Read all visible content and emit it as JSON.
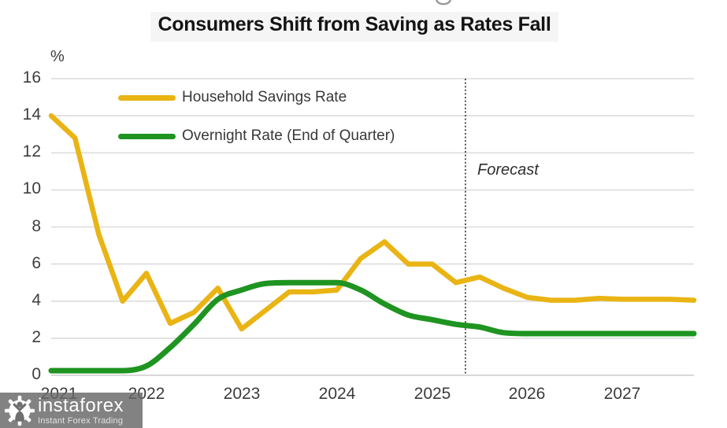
{
  "header": {
    "title": "Consumers Shift from Saving as Rates Fall"
  },
  "axes": {
    "y_unit": "%"
  },
  "legend": {
    "items": [
      {
        "label": "Household Savings Rate",
        "color": "#E9B414"
      },
      {
        "label": "Overnight Rate (End of Quarter)",
        "color": "#1F9421"
      }
    ]
  },
  "annotations": {
    "forecast_label": "Forecast"
  },
  "watermark": {
    "brand": "instaforex",
    "tagline": "Instant Forex Trading"
  },
  "chart_data": {
    "type": "line",
    "title": "Consumers Shift from Saving as Rates Fall",
    "y_unit": "%",
    "ylim": [
      0,
      16
    ],
    "y_ticks": [
      0,
      2,
      4,
      6,
      8,
      10,
      12,
      14,
      16
    ],
    "grid": true,
    "legend_position": "top-left-inside",
    "forecast_starts_at": "2025 Q3",
    "x_tick_labels": [
      "2021",
      "2022",
      "2023",
      "2024",
      "2025",
      "2026",
      "2027"
    ],
    "x_quarters": [
      "2021 Q1",
      "2021 Q2",
      "2021 Q3",
      "2021 Q4",
      "2022 Q1",
      "2022 Q2",
      "2022 Q3",
      "2022 Q4",
      "2023 Q1",
      "2023 Q2",
      "2023 Q3",
      "2023 Q4",
      "2024 Q1",
      "2024 Q2",
      "2024 Q3",
      "2024 Q4",
      "2025 Q1",
      "2025 Q2",
      "2025 Q3",
      "2025 Q4",
      "2026 Q1",
      "2026 Q2",
      "2026 Q3",
      "2026 Q4",
      "2027 Q1",
      "2027 Q2",
      "2027 Q3",
      "2027 Q4"
    ],
    "series": [
      {
        "name": "Household Savings Rate",
        "color": "#E9B414",
        "line_style": "straight",
        "values": [
          14.0,
          12.8,
          7.6,
          4.0,
          5.5,
          2.8,
          3.4,
          4.7,
          2.5,
          3.5,
          4.5,
          4.5,
          4.6,
          6.3,
          7.2,
          6.0,
          6.0,
          5.0,
          5.3,
          4.7,
          4.2,
          4.05,
          4.05,
          4.15,
          4.1,
          4.1,
          4.1,
          4.05
        ]
      },
      {
        "name": "Overnight Rate (End of Quarter)",
        "color": "#1F9421",
        "line_style": "smooth",
        "values": [
          0.25,
          0.25,
          0.25,
          0.25,
          0.5,
          1.5,
          2.75,
          4.1,
          4.6,
          4.95,
          5.0,
          5.0,
          5.0,
          4.6,
          3.85,
          3.25,
          3.0,
          2.75,
          2.6,
          2.3,
          2.25,
          2.25,
          2.25,
          2.25,
          2.25,
          2.25,
          2.25,
          2.25
        ]
      }
    ]
  }
}
